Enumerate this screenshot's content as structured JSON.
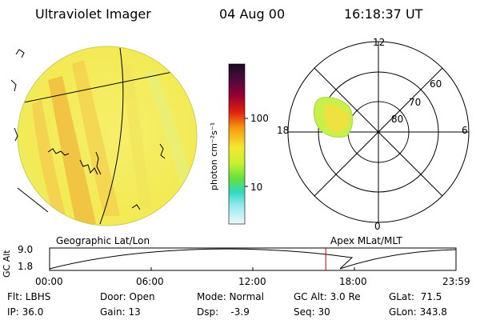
{
  "header": {
    "instrument": "Ultraviolet Imager",
    "date": "04 Aug 00",
    "time": "16:18:37 UT"
  },
  "colorbar": {
    "label": "photon cm⁻²s⁻¹",
    "ticks": [
      "100",
      "10"
    ],
    "scale": "log"
  },
  "polar_plot": {
    "mlt_labels": [
      "12",
      "18",
      "6",
      "0"
    ],
    "mlat_labels": [
      "60",
      "70",
      "80"
    ]
  },
  "maps": {
    "left_caption": "Geographic Lat/Lon",
    "right_caption": "Apex MLat/MLT"
  },
  "timeline": {
    "axis_label": "GC Alt",
    "y_ticks": [
      "9.0",
      "1.8"
    ],
    "x_ticks": [
      "00:00",
      "06:00",
      "12:00",
      "18:00",
      "23:59"
    ],
    "current_time_marker_hours": 16.31,
    "marker_color": "#cc0000"
  },
  "info": {
    "filter": "Flt: LBHS",
    "ip": "IP: 36.0",
    "door": "Door: Open",
    "gain": "Gain: 13",
    "mode": "Mode: Normal",
    "dsp": "Dsp:    -3.9",
    "gc_alt": "GC Alt: 3.0 Re",
    "seq": "Seq: 30",
    "glat": "GLat:  71.5",
    "glon": "GLon: 343.8"
  }
}
